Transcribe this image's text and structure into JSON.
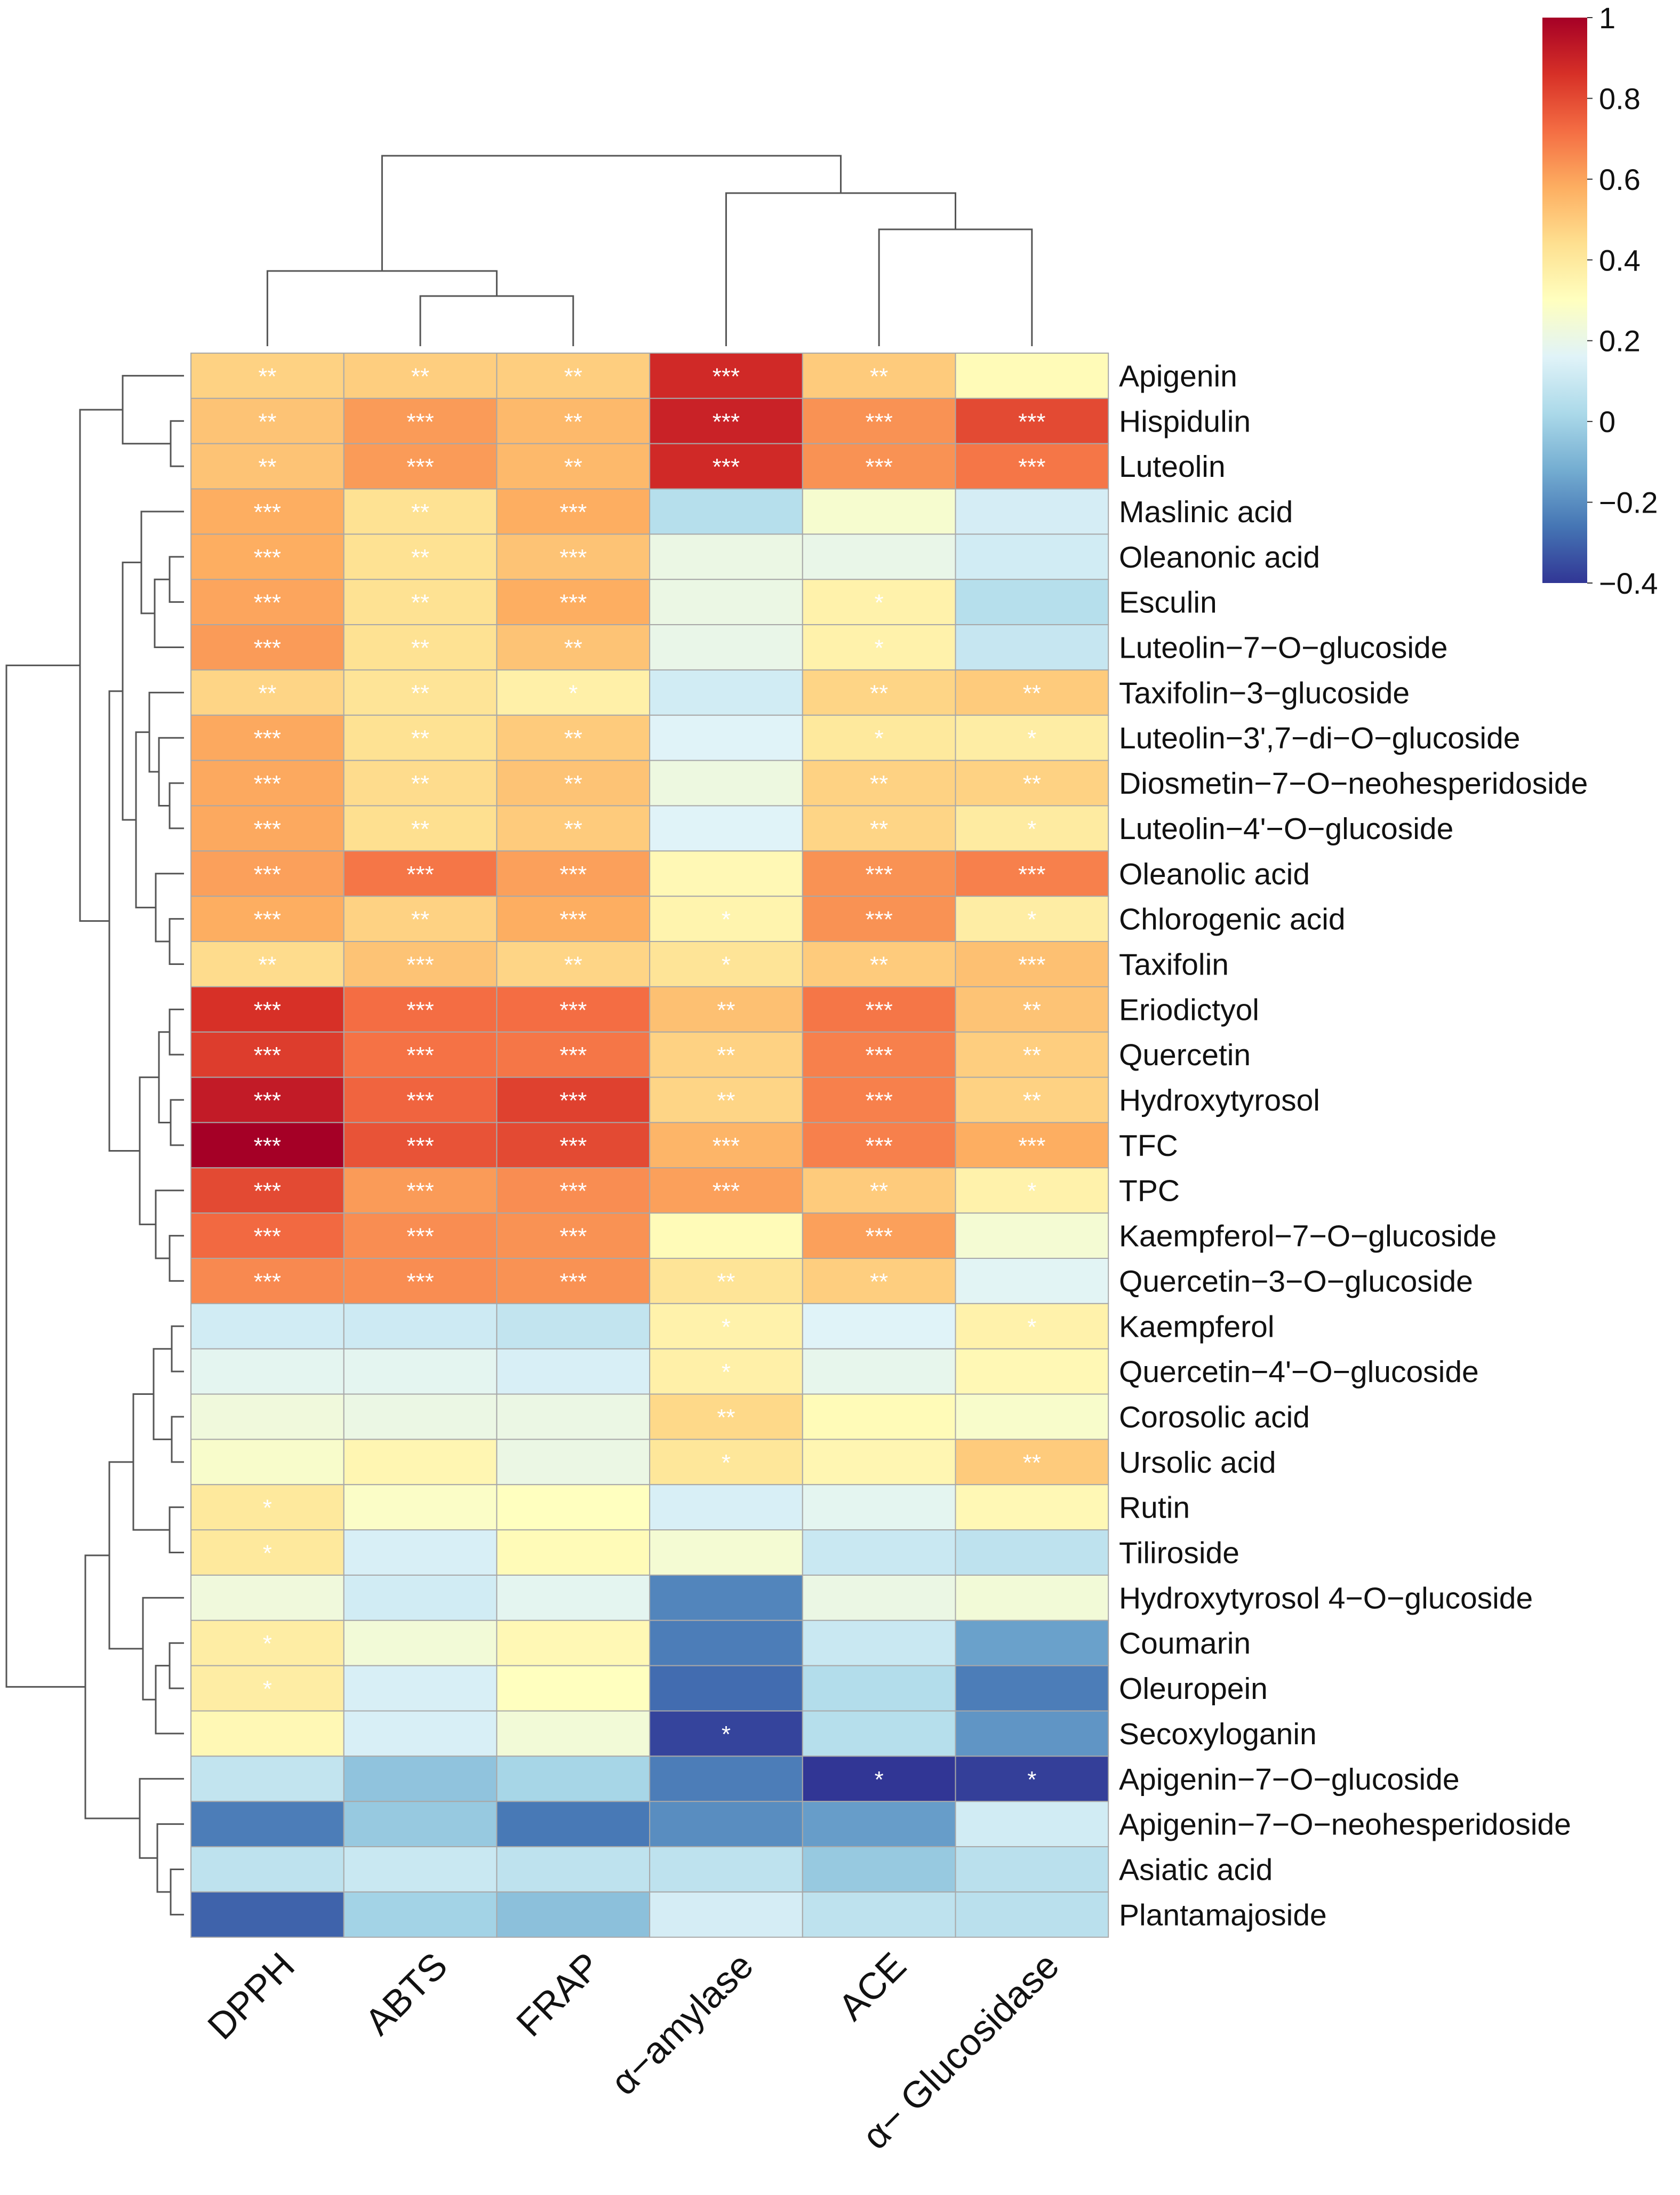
{
  "chart_data": {
    "type": "heatmap",
    "title": "",
    "columns": [
      "DPPH",
      "ABTS",
      "FRAP",
      "α−amylase",
      "ACE",
      "α− Glucosidase"
    ],
    "rows": [
      "Apigenin",
      "Hispidulin",
      "Luteolin",
      "Maslinic acid",
      "Oleanonic acid",
      "Esculin",
      "Luteolin−7−O−glucoside",
      "Taxifolin−3−glucoside",
      "Luteolin−3',7−di−O−glucoside",
      "Diosmetin−7−O−neohesperidoside",
      "Luteolin−4'−O−glucoside",
      "Oleanolic acid",
      "Chlorogenic acid",
      "Taxifolin",
      "Eriodictyol",
      "Quercetin",
      "Hydroxytyrosol",
      "TFC",
      "TPC",
      "Kaempferol−7−O−glucoside",
      "Quercetin−3−O−glucoside",
      "Kaempferol",
      "Quercetin−4'−O−glucoside",
      "Corosolic acid",
      "Ursolic acid",
      "Rutin",
      "Tiliroside",
      "Hydroxytyrosol 4−O−glucoside",
      "Coumarin",
      "Oleuropein",
      "Secoxyloganin",
      "Apigenin−7−O−glucoside",
      "Apigenin−7−O−neohesperidoside",
      "Asiatic acid",
      "Plantamajoside"
    ],
    "values": [
      [
        0.48,
        0.49,
        0.49,
        0.88,
        0.5,
        0.32
      ],
      [
        0.52,
        0.62,
        0.55,
        0.9,
        0.64,
        0.8
      ],
      [
        0.52,
        0.62,
        0.55,
        0.88,
        0.64,
        0.7
      ],
      [
        0.58,
        0.43,
        0.58,
        0.05,
        0.26,
        0.13
      ],
      [
        0.58,
        0.43,
        0.52,
        0.21,
        0.2,
        0.12
      ],
      [
        0.6,
        0.43,
        0.58,
        0.21,
        0.36,
        0.05
      ],
      [
        0.62,
        0.43,
        0.52,
        0.2,
        0.36,
        0.09
      ],
      [
        0.47,
        0.42,
        0.37,
        0.12,
        0.47,
        0.5
      ],
      [
        0.59,
        0.43,
        0.5,
        0.16,
        0.4,
        0.38
      ],
      [
        0.59,
        0.45,
        0.52,
        0.22,
        0.48,
        0.48
      ],
      [
        0.59,
        0.44,
        0.5,
        0.16,
        0.47,
        0.39
      ],
      [
        0.61,
        0.7,
        0.61,
        0.33,
        0.64,
        0.68
      ],
      [
        0.58,
        0.48,
        0.58,
        0.35,
        0.64,
        0.38
      ],
      [
        0.45,
        0.52,
        0.47,
        0.42,
        0.5,
        0.53
      ],
      [
        0.86,
        0.72,
        0.72,
        0.53,
        0.7,
        0.52
      ],
      [
        0.83,
        0.71,
        0.7,
        0.48,
        0.68,
        0.49
      ],
      [
        0.92,
        0.74,
        0.82,
        0.47,
        0.68,
        0.48
      ],
      [
        1.0,
        0.78,
        0.8,
        0.56,
        0.68,
        0.58
      ],
      [
        0.8,
        0.62,
        0.65,
        0.61,
        0.5,
        0.36
      ],
      [
        0.73,
        0.65,
        0.64,
        0.32,
        0.61,
        0.25
      ],
      [
        0.66,
        0.65,
        0.64,
        0.42,
        0.49,
        0.17
      ],
      [
        0.12,
        0.11,
        0.08,
        0.36,
        0.16,
        0.36
      ],
      [
        0.18,
        0.18,
        0.14,
        0.37,
        0.19,
        0.33
      ],
      [
        0.23,
        0.21,
        0.21,
        0.46,
        0.32,
        0.27
      ],
      [
        0.27,
        0.34,
        0.21,
        0.41,
        0.34,
        0.5
      ],
      [
        0.4,
        0.28,
        0.3,
        0.14,
        0.18,
        0.33
      ],
      [
        0.4,
        0.14,
        0.32,
        0.25,
        0.1,
        0.07
      ],
      [
        0.23,
        0.12,
        0.18,
        -0.22,
        0.21,
        0.24
      ],
      [
        0.38,
        0.24,
        0.33,
        -0.24,
        0.1,
        -0.15
      ],
      [
        0.38,
        0.14,
        0.3,
        -0.28,
        0.04,
        -0.24
      ],
      [
        0.33,
        0.14,
        0.24,
        -0.37,
        0.05,
        -0.18
      ],
      [
        0.08,
        -0.05,
        0.01,
        -0.24,
        -0.4,
        -0.38
      ],
      [
        -0.24,
        -0.03,
        -0.25,
        -0.2,
        -0.16,
        0.12
      ],
      [
        0.07,
        0.1,
        0.07,
        0.07,
        -0.03,
        0.06
      ],
      [
        -0.3,
        0.0,
        -0.06,
        0.13,
        0.07,
        0.06
      ]
    ],
    "significance": [
      [
        "**",
        "**",
        "**",
        "***",
        "**",
        ""
      ],
      [
        "**",
        "***",
        "**",
        "***",
        "***",
        "***"
      ],
      [
        "**",
        "***",
        "**",
        "***",
        "***",
        "***"
      ],
      [
        "***",
        "**",
        "***",
        "",
        "",
        ""
      ],
      [
        "***",
        "**",
        "***",
        "",
        "",
        ""
      ],
      [
        "***",
        "**",
        "***",
        "",
        "*",
        ""
      ],
      [
        "***",
        "**",
        "**",
        "",
        "*",
        ""
      ],
      [
        "**",
        "**",
        "*",
        "",
        "**",
        "**"
      ],
      [
        "***",
        "**",
        "**",
        "",
        "*",
        "*"
      ],
      [
        "***",
        "**",
        "**",
        "",
        "**",
        "**"
      ],
      [
        "***",
        "**",
        "**",
        "",
        "**",
        "*"
      ],
      [
        "***",
        "***",
        "***",
        "",
        "***",
        "***"
      ],
      [
        "***",
        "**",
        "***",
        "*",
        "***",
        "*"
      ],
      [
        "**",
        "***",
        "**",
        "*",
        "**",
        "***"
      ],
      [
        "***",
        "***",
        "***",
        "**",
        "***",
        "**"
      ],
      [
        "***",
        "***",
        "***",
        "**",
        "***",
        "**"
      ],
      [
        "***",
        "***",
        "***",
        "**",
        "***",
        "**"
      ],
      [
        "***",
        "***",
        "***",
        "***",
        "***",
        "***"
      ],
      [
        "***",
        "***",
        "***",
        "***",
        "**",
        "*"
      ],
      [
        "***",
        "***",
        "***",
        "",
        "***",
        ""
      ],
      [
        "***",
        "***",
        "***",
        "**",
        "**",
        ""
      ],
      [
        "",
        "",
        "",
        "*",
        "",
        "*"
      ],
      [
        "",
        "",
        "",
        "*",
        "",
        ""
      ],
      [
        "",
        "",
        "",
        "**",
        "",
        ""
      ],
      [
        "",
        "",
        "",
        "*",
        "",
        "**"
      ],
      [
        "*",
        "",
        "",
        "",
        "",
        ""
      ],
      [
        "*",
        "",
        "",
        "",
        "",
        ""
      ],
      [
        "",
        "",
        "",
        "",
        "",
        ""
      ],
      [
        "*",
        "",
        "",
        "",
        "",
        ""
      ],
      [
        "*",
        "",
        "",
        "",
        "",
        ""
      ],
      [
        "",
        "",
        "",
        "*",
        "",
        ""
      ],
      [
        "",
        "",
        "",
        "",
        "*",
        "*"
      ],
      [
        "",
        "",
        "",
        "",
        "",
        ""
      ],
      [
        "",
        "",
        "",
        "",
        "",
        ""
      ],
      [
        "",
        "",
        "",
        "",
        "",
        ""
      ]
    ],
    "scale": {
      "min": -0.4,
      "max": 1,
      "ticks": [
        1,
        0.8,
        0.6,
        0.4,
        0.2,
        0,
        -0.2,
        -0.4
      ],
      "tick_labels": [
        "1",
        "0.8",
        "0.6",
        "0.4",
        "0.2",
        "0",
        "−0.2",
        "−0.4"
      ],
      "colors": [
        "#313695",
        "#4575b4",
        "#74add1",
        "#abd9e9",
        "#e0f3f8",
        "#ffffbf",
        "#fee090",
        "#fdae61",
        "#f46d43",
        "#d73027",
        "#a50026"
      ]
    },
    "legend_position": "top-right",
    "column_dendrogram": true,
    "row_dendrogram": true
  }
}
